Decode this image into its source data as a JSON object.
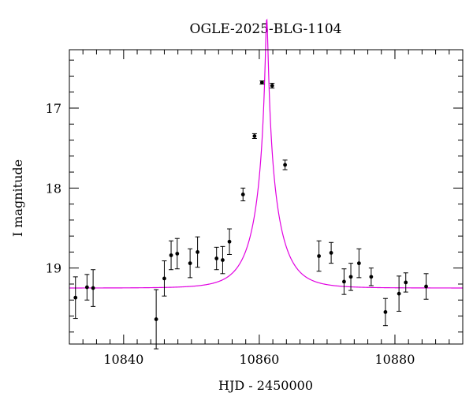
{
  "chart_data": {
    "type": "scatter",
    "title": "OGLE-2025-BLG-1104",
    "xlabel": "HJD - 2450000",
    "ylabel": "I magnitude",
    "xlim": [
      10832,
      10890
    ],
    "ylim": [
      19.95,
      16.27
    ],
    "y_inverted": true,
    "grid": false,
    "x_ticks": [
      10840,
      10860,
      10880
    ],
    "x_tick_labels": [
      "10840",
      "10860",
      "10880"
    ],
    "y_ticks": [
      17,
      18,
      19
    ],
    "y_tick_labels": [
      "17",
      "18",
      "19"
    ],
    "x_minor_step": 2,
    "y_minor_step": 0.2,
    "series": [
      {
        "kind": "points_with_errors",
        "color": "#000000",
        "points": [
          {
            "x": 10832.9,
            "y": 19.37,
            "err": 0.26
          },
          {
            "x": 10834.6,
            "y": 19.24,
            "err": 0.16
          },
          {
            "x": 10835.5,
            "y": 19.25,
            "err": 0.23
          },
          {
            "x": 10844.8,
            "y": 19.64,
            "err": 0.37
          },
          {
            "x": 10846.0,
            "y": 19.13,
            "err": 0.22
          },
          {
            "x": 10847.0,
            "y": 18.84,
            "err": 0.18
          },
          {
            "x": 10847.9,
            "y": 18.82,
            "err": 0.19
          },
          {
            "x": 10849.8,
            "y": 18.94,
            "err": 0.18
          },
          {
            "x": 10850.9,
            "y": 18.8,
            "err": 0.19
          },
          {
            "x": 10853.7,
            "y": 18.88,
            "err": 0.14
          },
          {
            "x": 10854.6,
            "y": 18.9,
            "err": 0.17
          },
          {
            "x": 10855.6,
            "y": 18.67,
            "err": 0.16
          },
          {
            "x": 10857.6,
            "y": 18.08,
            "err": 0.08
          },
          {
            "x": 10859.3,
            "y": 17.35,
            "err": 0.03
          },
          {
            "x": 10860.4,
            "y": 16.68,
            "err": 0.02
          },
          {
            "x": 10861.9,
            "y": 16.72,
            "err": 0.03
          },
          {
            "x": 10863.8,
            "y": 17.71,
            "err": 0.06
          },
          {
            "x": 10868.8,
            "y": 18.85,
            "err": 0.19
          },
          {
            "x": 10870.6,
            "y": 18.81,
            "err": 0.13
          },
          {
            "x": 10872.5,
            "y": 19.17,
            "err": 0.16
          },
          {
            "x": 10873.5,
            "y": 19.11,
            "err": 0.17
          },
          {
            "x": 10874.7,
            "y": 18.94,
            "err": 0.18
          },
          {
            "x": 10876.5,
            "y": 19.11,
            "err": 0.11
          },
          {
            "x": 10878.6,
            "y": 19.55,
            "err": 0.17
          },
          {
            "x": 10880.6,
            "y": 19.32,
            "err": 0.22
          },
          {
            "x": 10881.6,
            "y": 19.18,
            "err": 0.12
          },
          {
            "x": 10884.6,
            "y": 19.23,
            "err": 0.16
          }
        ]
      },
      {
        "kind": "model_curve",
        "color": "#e100e1",
        "model": "pspl",
        "baseline_mag": 19.25,
        "t0": 10861.1,
        "u0": 0.045,
        "tE": 3.88
      }
    ]
  }
}
